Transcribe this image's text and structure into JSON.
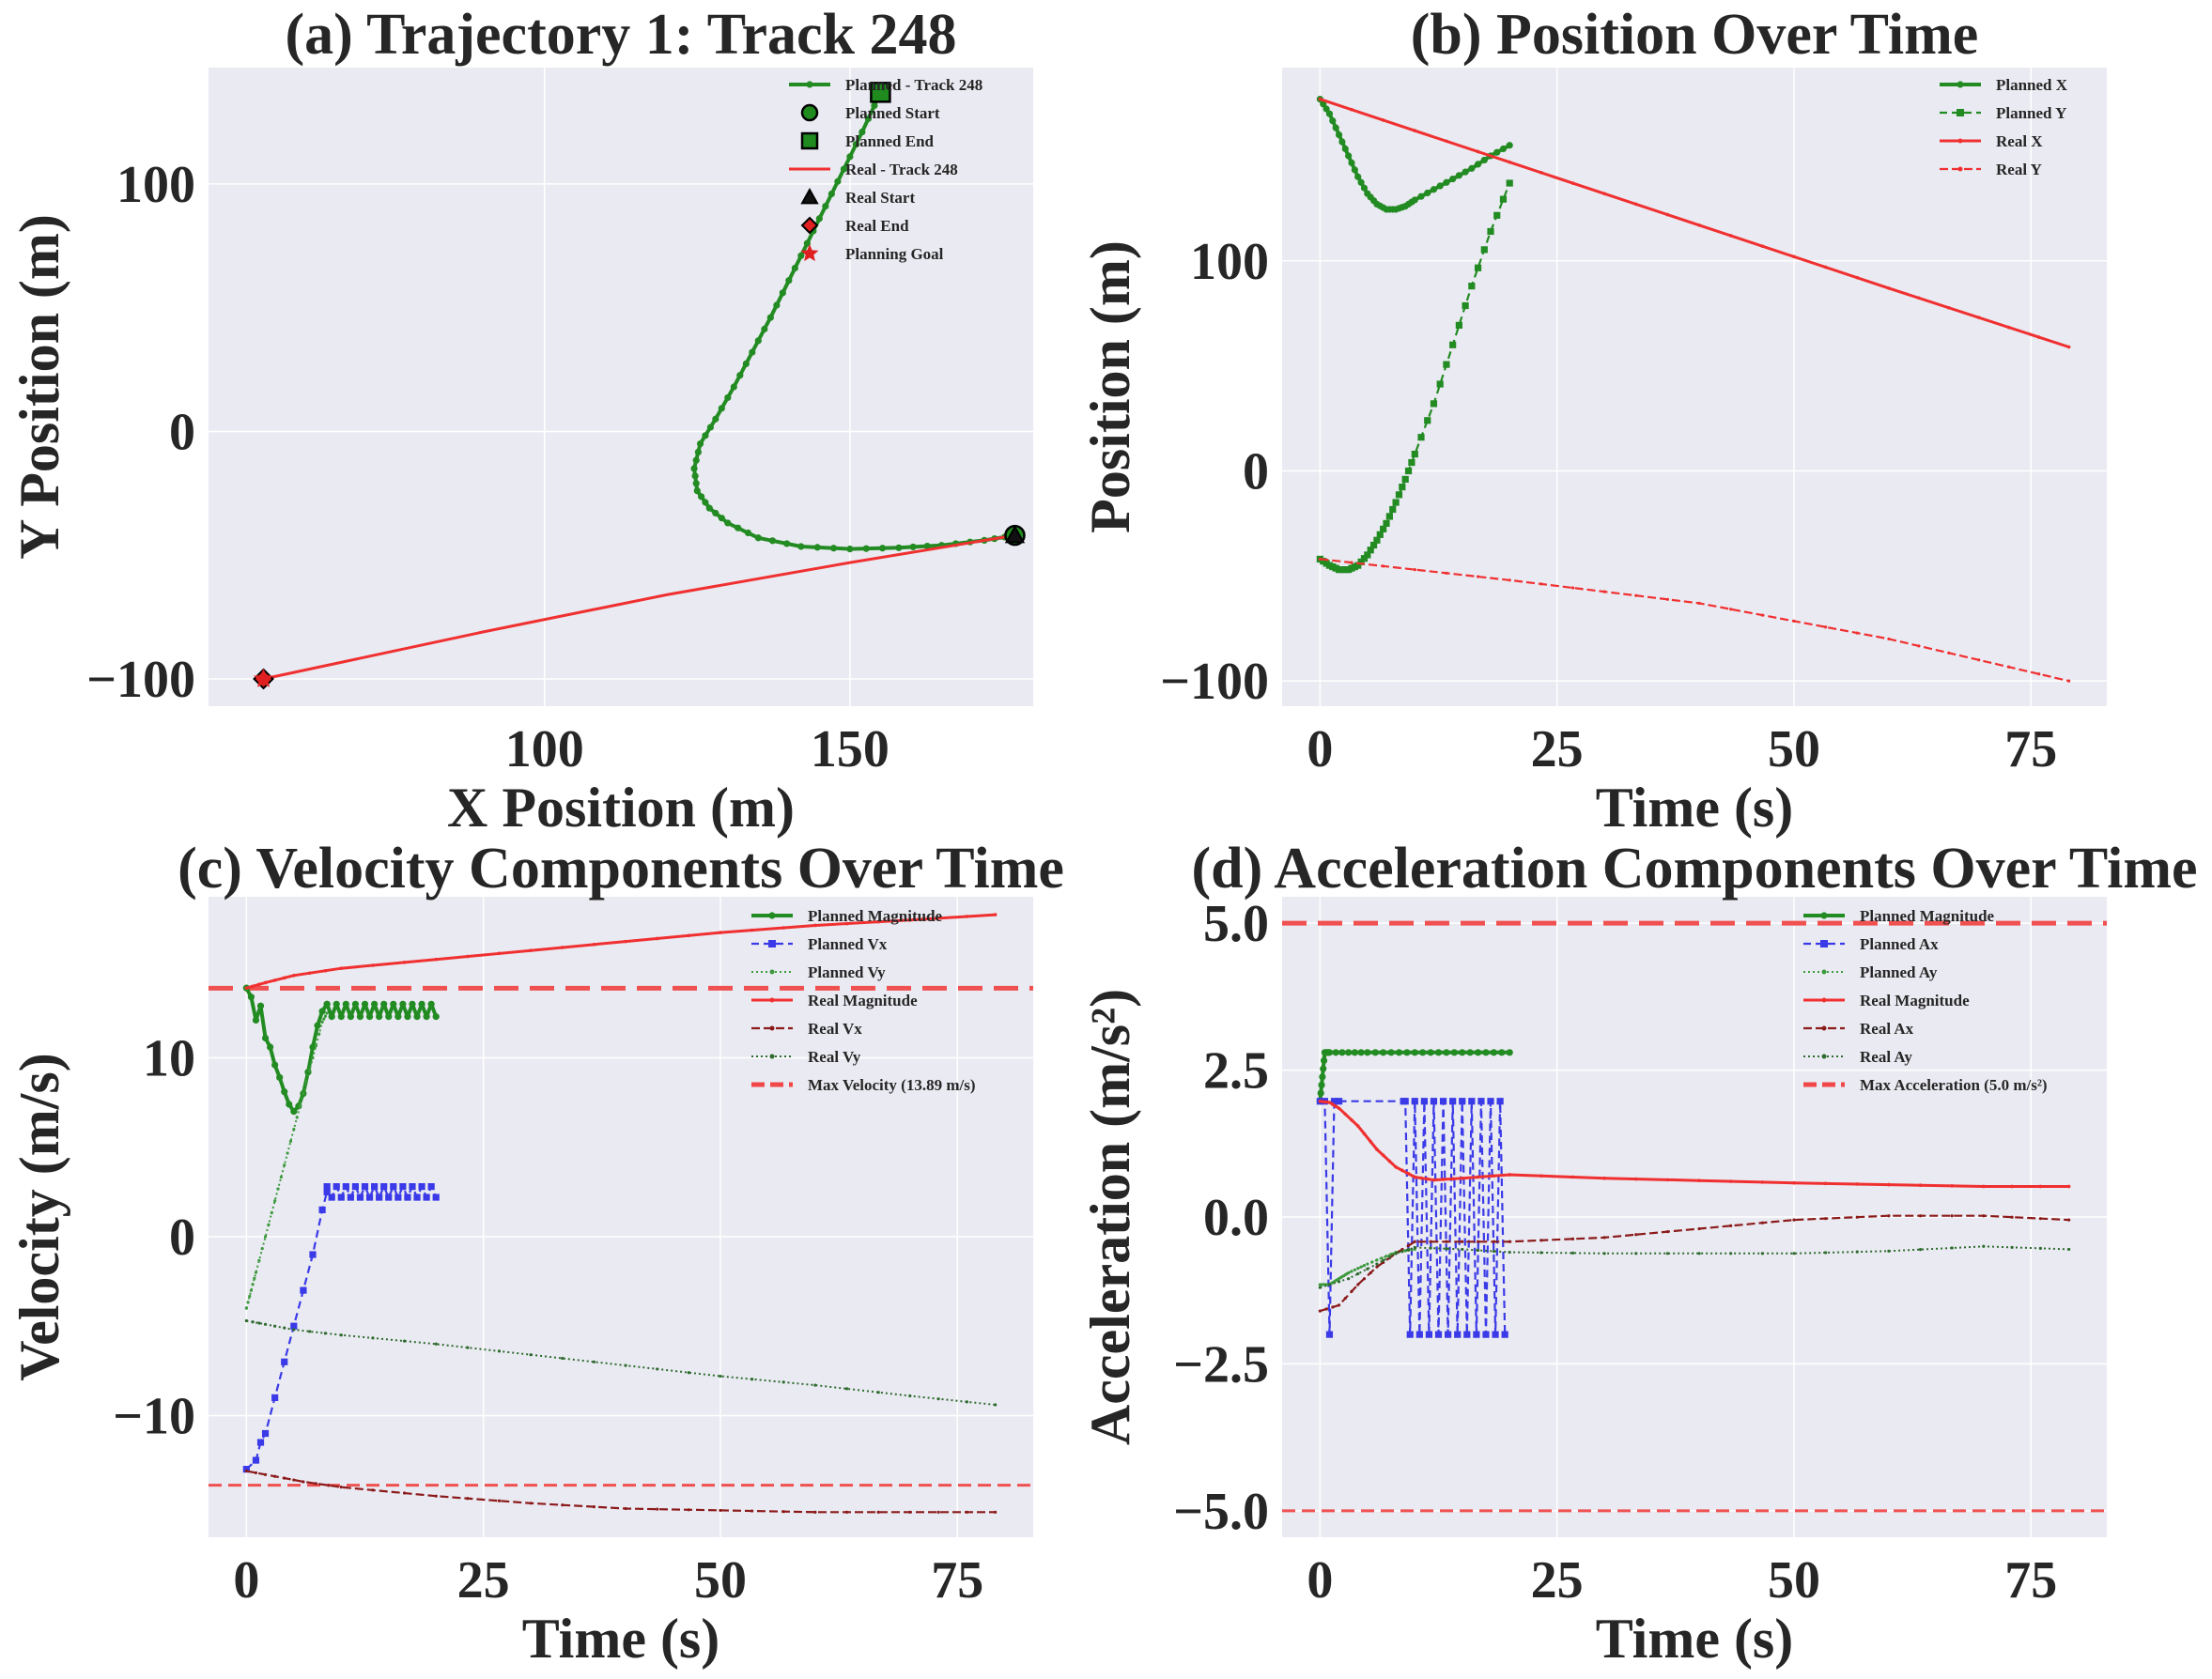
{
  "colors": {
    "axes_bg": "#EAEAF2",
    "grid": "#FFFFFF",
    "planned": "#228B22",
    "real": "#F03030",
    "planned_vx": "#3A3AE8",
    "planned_vy": "#3C9A3C",
    "real_vx": "#8B1A1A",
    "real_vy": "#2E6B2E",
    "limit": "#F04848",
    "marker_black": "#111111",
    "marker_green": "#1F8B1F",
    "marker_red": "#E02020"
  },
  "chart_data": [
    {
      "id": "a",
      "type": "line",
      "title": "(a) Trajectory 1: Track 248",
      "xlabel": "X Position (m)",
      "ylabel": "Y Position (m)",
      "xlim": [
        45,
        180
      ],
      "ylim": [
        -111,
        147
      ],
      "xticks": [
        100,
        150
      ],
      "yticks": [
        -100,
        0,
        100
      ],
      "tick_labels": {
        "x": [
          "100",
          "150"
        ],
        "y": [
          "−100",
          "0",
          "100"
        ]
      },
      "legend_position": "top-right",
      "series": [
        {
          "name": "Planned - Track 248",
          "color_key": "planned",
          "style": "solid-dot",
          "x": [
            177,
            172,
            165,
            158,
            150,
            142,
            135,
            130,
            127,
            125,
            124.5,
            125.5,
            128,
            131,
            134,
            137,
            140,
            143,
            146,
            149,
            152,
            155
          ],
          "y": [
            -42,
            -44,
            -46,
            -47,
            -47.5,
            -46.5,
            -43,
            -37,
            -31,
            -24,
            -15,
            -5,
            5,
            18,
            32,
            46,
            61,
            76,
            91,
            106,
            121,
            137
          ]
        },
        {
          "name": "Real - Track 248",
          "color_key": "real",
          "style": "solid",
          "x": [
            177,
            150,
            120,
            90,
            54
          ],
          "y": [
            -42,
            -53,
            -66,
            -81,
            -100
          ]
        }
      ],
      "markers": [
        {
          "name": "Planned Start",
          "shape": "circle",
          "fill_key": "marker_green",
          "x": 177,
          "y": -42
        },
        {
          "name": "Planned End",
          "shape": "square",
          "fill_key": "marker_green",
          "x": 155,
          "y": 137
        },
        {
          "name": "Real Start",
          "shape": "triangle",
          "fill_key": "marker_black",
          "x": 177,
          "y": -42
        },
        {
          "name": "Real End",
          "shape": "diamond",
          "fill_key": "marker_red",
          "x": 54,
          "y": -100
        },
        {
          "name": "Planning Goal",
          "shape": "star",
          "fill_key": "marker_red",
          "x": 54,
          "y": -100
        }
      ],
      "legend": [
        "Planned - Track 248",
        "Planned Start",
        "Planned End",
        "Real - Track 248",
        "Real Start",
        "Real End",
        "Planning Goal"
      ]
    },
    {
      "id": "b",
      "type": "line",
      "title": "(b) Position Over Time",
      "xlabel": "Time (s)",
      "ylabel": "Position (m)",
      "xlim": [
        -4,
        83
      ],
      "ylim": [
        -112,
        192
      ],
      "xticks": [
        0,
        25,
        50,
        75
      ],
      "yticks": [
        -100,
        0,
        100
      ],
      "tick_labels": {
        "x": [
          "0",
          "25",
          "50",
          "75"
        ],
        "y": [
          "−100",
          "0",
          "100"
        ]
      },
      "legend_position": "top-right",
      "series": [
        {
          "name": "Planned X",
          "color_key": "planned",
          "style": "solid-dot",
          "x": [
            0,
            1,
            2,
            3,
            4,
            5,
            6,
            7,
            8,
            9,
            10,
            12,
            14,
            16,
            18,
            20
          ],
          "y": [
            177,
            170,
            160,
            150,
            140,
            132,
            127,
            124.5,
            124.5,
            126,
            129,
            134,
            139,
            144,
            150,
            155
          ]
        },
        {
          "name": "Planned Y",
          "color_key": "planned",
          "style": "dashed-square",
          "x": [
            0,
            1,
            2,
            3,
            4,
            5,
            6,
            7,
            8,
            9,
            10,
            12,
            14,
            16,
            18,
            20
          ],
          "y": [
            -42,
            -45,
            -47,
            -47,
            -45,
            -40,
            -33,
            -25,
            -15,
            -4,
            8,
            32,
            60,
            88,
            114,
            137
          ]
        },
        {
          "name": "Real X",
          "color_key": "real",
          "style": "solid-tiny",
          "x": [
            0,
            20,
            40,
            60,
            79
          ],
          "y": [
            177,
            147,
            117,
            87,
            59
          ]
        },
        {
          "name": "Real Y",
          "color_key": "real",
          "style": "dashed-tiny",
          "x": [
            0,
            20,
            40,
            60,
            79
          ],
          "y": [
            -42,
            -52,
            -63,
            -80,
            -100
          ]
        }
      ],
      "legend": [
        "Planned X",
        "Planned Y",
        "Real X",
        "Real Y"
      ]
    },
    {
      "id": "c",
      "type": "line",
      "title": "(c) Velocity Components Over Time",
      "xlabel": "Time (s)",
      "ylabel": "Velocity (m/s)",
      "xlim": [
        -4,
        83
      ],
      "ylim": [
        -16.8,
        19
      ],
      "xticks": [
        0,
        25,
        50,
        75
      ],
      "yticks": [
        -10,
        0,
        10
      ],
      "tick_labels": {
        "x": [
          "0",
          "25",
          "50",
          "75"
        ],
        "y": [
          "−10",
          "0",
          "10"
        ]
      },
      "legend_position": "top-right",
      "series": [
        {
          "name": "Planned Magnitude",
          "color_key": "planned",
          "style": "solid-dot",
          "x": [
            0,
            0.5,
            1,
            1.5,
            2,
            2.5,
            3,
            3.5,
            4,
            4.5,
            5,
            5.5,
            6,
            6.5,
            7,
            7.5,
            8,
            8.5
          ],
          "y": [
            13.9,
            13.4,
            12.1,
            12.9,
            11.1,
            10.6,
            9.6,
            8.9,
            8.1,
            7.4,
            7.0,
            7.3,
            8.0,
            9.2,
            10.6,
            11.8,
            12.6,
            13.0
          ],
          "zigzag": {
            "x_start": 8.5,
            "x_end": 20,
            "step": 0.5,
            "values": [
              13.0,
              12.3
            ]
          }
        },
        {
          "name": "Planned Vx",
          "color_key": "planned_vx",
          "style": "dashed-square",
          "x": [
            0,
            1,
            1.5,
            2,
            3,
            4,
            5,
            6,
            7,
            8,
            8.5
          ],
          "y": [
            -13,
            -12.5,
            -11.5,
            -11,
            -9,
            -7,
            -5,
            -3,
            -1,
            1.5,
            2.5
          ],
          "zigzag": {
            "x_start": 8.5,
            "x_end": 20,
            "step": 0.5,
            "values": [
              2.8,
              2.2
            ]
          }
        },
        {
          "name": "Planned Vy",
          "color_key": "planned_vy",
          "style": "dotted-tiny",
          "x": [
            0,
            0.5,
            1,
            2,
            3,
            4,
            5,
            6,
            7,
            8,
            8.5
          ],
          "y": [
            -4,
            -3,
            -2,
            0,
            2,
            4,
            6,
            8,
            10,
            12,
            12.5
          ]
        },
        {
          "name": "Real Magnitude",
          "color_key": "real",
          "style": "solid-tiny",
          "x": [
            0,
            2,
            5,
            10,
            20,
            30,
            40,
            50,
            60,
            70,
            79
          ],
          "y": [
            13.9,
            14.2,
            14.6,
            15.0,
            15.5,
            16.0,
            16.5,
            17.0,
            17.4,
            17.7,
            18.0
          ]
        },
        {
          "name": "Real Vx",
          "color_key": "real_vx",
          "style": "dashed-tiny",
          "x": [
            0,
            3,
            6,
            10,
            20,
            30,
            40,
            50,
            60,
            70,
            79
          ],
          "y": [
            -13.1,
            -13.4,
            -13.7,
            -14.0,
            -14.5,
            -14.9,
            -15.2,
            -15.3,
            -15.4,
            -15.4,
            -15.4
          ]
        },
        {
          "name": "Real Vy",
          "color_key": "real_vy",
          "style": "dotted-tiny",
          "x": [
            0,
            2,
            5,
            10,
            20,
            30,
            40,
            50,
            60,
            70,
            79
          ],
          "y": [
            -4.7,
            -4.9,
            -5.2,
            -5.5,
            -6.0,
            -6.6,
            -7.2,
            -7.8,
            -8.3,
            -8.9,
            -9.4
          ]
        }
      ],
      "hlines": [
        {
          "y": 13.89,
          "color_key": "limit",
          "dash": "thick"
        },
        {
          "y": -13.89,
          "color_key": "limit",
          "dash": "thin"
        }
      ],
      "legend": [
        "Planned Magnitude",
        "Planned Vx",
        "Planned Vy",
        "Real Magnitude",
        "Real Vx",
        "Real Vy",
        "Max Velocity (13.89 m/s)"
      ]
    },
    {
      "id": "d",
      "type": "line",
      "title": "(d) Acceleration Components Over Time",
      "xlabel": "Time (s)",
      "ylabel": "Acceleration (m/s²)",
      "xlim": [
        -4,
        83
      ],
      "ylim": [
        -5.45,
        5.45
      ],
      "xticks": [
        0,
        25,
        50,
        75
      ],
      "yticks": [
        -5,
        -2.5,
        0,
        2.5,
        5
      ],
      "tick_labels": {
        "x": [
          "0",
          "25",
          "50",
          "75"
        ],
        "y": [
          "−5.0",
          "−2.5",
          "0.0",
          "2.5",
          "5.0"
        ]
      },
      "legend_position": "top-right",
      "series": [
        {
          "name": "Planned Magnitude",
          "color_key": "planned",
          "style": "solid-dot",
          "x": [
            0,
            0.5,
            1,
            5,
            10,
            15,
            20
          ],
          "y": [
            1.97,
            2.8,
            2.8,
            2.8,
            2.8,
            2.8,
            2.8
          ]
        },
        {
          "name": "Planned Ax",
          "color_key": "planned_vx",
          "style": "dashed-square",
          "x": [
            0,
            0.5,
            1,
            1.5,
            2,
            8.8
          ],
          "y": [
            1.97,
            1.97,
            -2.0,
            1.97,
            1.97,
            1.97
          ],
          "zigzag": {
            "x_start": 9,
            "x_end": 19.8,
            "step": 0.5,
            "values": [
              1.97,
              -2.0
            ]
          }
        },
        {
          "name": "Planned Ay",
          "color_key": "planned_vy",
          "style": "dotted-tiny",
          "x": [
            0,
            1,
            2,
            3,
            5,
            8,
            10
          ],
          "y": [
            -1.15,
            -1.15,
            -1.05,
            -0.95,
            -0.8,
            -0.6,
            -0.55
          ]
        },
        {
          "name": "Real Magnitude",
          "color_key": "real",
          "style": "solid-tiny",
          "x": [
            0,
            1,
            2,
            4,
            6,
            8,
            10,
            12,
            15,
            20,
            30,
            40,
            50,
            60,
            70,
            79
          ],
          "y": [
            1.97,
            1.95,
            1.85,
            1.55,
            1.15,
            0.85,
            0.68,
            0.63,
            0.66,
            0.72,
            0.66,
            0.62,
            0.58,
            0.55,
            0.52,
            0.52
          ]
        },
        {
          "name": "Real Ax",
          "color_key": "real_vx",
          "style": "dashed-tiny",
          "x": [
            0,
            2,
            4,
            6,
            8,
            10,
            15,
            20,
            30,
            40,
            50,
            60,
            70,
            79
          ],
          "y": [
            -1.6,
            -1.5,
            -1.15,
            -0.85,
            -0.62,
            -0.42,
            -0.42,
            -0.42,
            -0.35,
            -0.2,
            -0.05,
            0.02,
            0.02,
            -0.05
          ]
        },
        {
          "name": "Real Ay",
          "color_key": "real_vy",
          "style": "dotted-tiny",
          "x": [
            0,
            3,
            6,
            8,
            10,
            15,
            20,
            30,
            40,
            50,
            60,
            70,
            79
          ],
          "y": [
            -1.2,
            -1.05,
            -0.8,
            -0.62,
            -0.52,
            -0.55,
            -0.6,
            -0.62,
            -0.62,
            -0.62,
            -0.58,
            -0.5,
            -0.55
          ]
        }
      ],
      "hlines": [
        {
          "y": 5.0,
          "color_key": "limit",
          "dash": "thick"
        },
        {
          "y": -5.0,
          "color_key": "limit",
          "dash": "thin"
        }
      ],
      "legend": [
        "Planned Magnitude",
        "Planned Ax",
        "Planned Ay",
        "Real Magnitude",
        "Real Ax",
        "Real Ay",
        "Max Acceleration (5.0 m/s²)"
      ]
    }
  ]
}
